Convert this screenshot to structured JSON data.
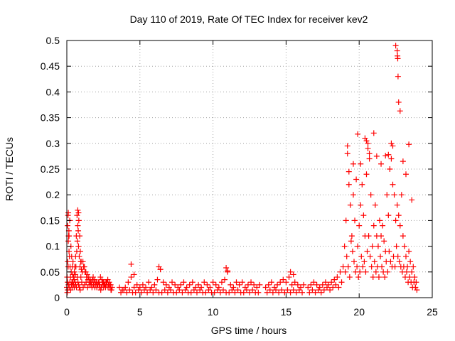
{
  "chart_data": {
    "type": "scatter",
    "title": "Day 110 of 2019, Rate Of TEC Index for receiver kev2",
    "xlabel": "GPS time / hours",
    "ylabel": "ROTI / TECUs",
    "xlim": [
      0,
      25
    ],
    "ylim": [
      0,
      0.5
    ],
    "xticks": [
      0,
      5,
      10,
      15,
      20,
      25
    ],
    "xtick_labels": [
      "0",
      "5",
      "10",
      "15",
      "20",
      "25"
    ],
    "yticks": [
      0,
      0.05,
      0.1,
      0.15,
      0.2,
      0.25,
      0.3,
      0.35,
      0.4,
      0.45,
      0.5
    ],
    "ytick_labels": [
      "0",
      "0.05",
      "0.1",
      "0.15",
      "0.2",
      "0.25",
      "0.3",
      "0.35",
      "0.4",
      "0.45",
      "0.5"
    ],
    "grid": true,
    "marker": "+",
    "color": "#ff0000",
    "series": [
      {
        "name": "ROTI",
        "x": [
          0.0,
          0.05,
          0.08,
          0.12,
          0.15,
          0.18,
          0.22,
          0.25,
          0.3,
          0.35,
          0.4,
          0.45,
          0.5,
          0.55,
          0.6,
          0.65,
          0.7,
          0.75,
          0.8,
          0.85,
          0.9,
          0.95,
          1.0,
          1.1,
          1.2,
          1.3,
          1.4,
          1.5,
          1.6,
          1.7,
          1.8,
          1.9,
          2.0,
          2.1,
          2.2,
          2.3,
          2.4,
          2.5,
          2.6,
          2.7,
          2.8,
          2.9,
          3.0,
          3.1,
          3.6,
          3.8,
          4.0,
          4.2,
          4.4,
          4.6,
          4.8,
          5.0,
          5.2,
          5.4,
          5.6,
          5.8,
          6.0,
          6.2,
          6.4,
          6.6,
          6.8,
          7.0,
          7.2,
          7.4,
          7.6,
          7.8,
          8.0,
          8.2,
          8.4,
          8.6,
          8.8,
          9.0,
          9.2,
          9.4,
          9.6,
          9.8,
          10.0,
          10.2,
          10.4,
          10.6,
          10.8,
          11.0,
          11.2,
          11.4,
          11.6,
          11.8,
          12.0,
          12.2,
          12.4,
          12.6,
          12.8,
          13.0,
          13.2,
          13.6,
          13.8,
          14.0,
          14.2,
          14.4,
          14.6,
          14.8,
          15.0,
          15.2,
          15.4,
          15.6,
          15.8,
          16.0,
          16.2,
          16.5,
          16.7,
          16.9,
          17.1,
          17.3,
          17.5,
          17.7,
          17.9,
          18.1,
          18.3,
          18.5,
          18.7,
          18.9,
          19.0,
          19.1,
          19.2,
          19.3,
          19.4,
          19.5,
          19.6,
          19.7,
          19.8,
          19.9,
          20.0,
          20.1,
          20.2,
          20.3,
          20.4,
          20.5,
          20.6,
          20.7,
          20.8,
          20.9,
          21.0,
          21.1,
          21.2,
          21.3,
          21.4,
          21.5,
          21.6,
          21.7,
          21.8,
          21.9,
          22.0,
          22.1,
          22.2,
          22.3,
          22.4,
          22.5,
          22.6,
          22.7,
          22.8,
          22.9,
          23.0,
          23.1,
          23.2,
          23.3,
          23.4,
          23.5,
          23.6,
          23.7,
          23.8,
          23.9,
          0.03,
          0.06,
          0.1,
          0.14,
          0.2,
          0.28,
          0.33,
          0.38,
          0.42,
          0.48,
          0.52,
          0.58,
          0.62,
          0.68,
          0.72,
          0.78,
          0.82,
          0.88,
          0.92,
          0.98,
          1.05,
          1.15,
          1.25,
          1.35,
          1.45,
          1.55,
          1.65,
          1.75,
          1.85,
          1.95,
          2.05,
          2.15,
          2.25,
          2.35,
          2.45,
          2.55,
          2.65,
          2.75,
          2.85,
          2.95,
          3.05,
          0.02,
          0.05,
          0.09,
          0.11,
          0.16,
          0.21,
          0.26,
          0.31,
          0.36,
          0.41,
          0.46,
          0.51,
          0.56,
          0.61,
          0.66,
          0.71,
          0.76,
          0.81,
          0.86,
          0.91,
          0.96,
          1.02,
          1.12,
          1.22,
          1.32,
          1.42,
          1.52,
          1.62,
          1.72,
          1.82,
          1.92,
          2.02,
          2.12,
          2.22,
          2.32,
          2.42,
          2.52,
          2.62,
          2.72,
          2.82,
          2.92,
          3.02,
          3.7,
          3.9,
          4.1,
          4.3,
          4.5,
          4.7,
          4.9,
          5.1,
          5.3,
          5.5,
          5.7,
          5.9,
          6.1,
          6.3,
          6.5,
          6.7,
          6.9,
          7.1,
          7.3,
          7.5,
          7.7,
          7.9,
          8.1,
          8.3,
          8.5,
          8.7,
          8.9,
          9.1,
          9.3,
          9.5,
          9.7,
          9.9,
          10.1,
          10.3,
          10.5,
          10.7,
          10.9,
          11.1,
          11.3,
          11.5,
          11.7,
          11.9,
          12.1,
          12.3,
          12.5,
          12.7,
          12.9,
          13.1,
          13.7,
          13.9,
          14.1,
          14.3,
          14.5,
          14.7,
          14.9,
          15.1,
          15.3,
          15.5,
          15.7,
          15.9,
          16.1,
          16.6,
          16.8,
          17.0,
          17.2,
          17.4,
          17.6,
          17.8,
          18.0,
          18.2,
          18.4,
          18.6,
          18.8,
          19.05,
          19.15,
          19.25,
          19.35,
          19.45,
          19.55,
          19.65,
          19.75,
          19.85,
          19.95,
          20.05,
          20.15,
          20.25,
          20.35,
          20.45,
          20.55,
          20.65,
          20.75,
          20.85,
          20.95,
          21.05,
          21.15,
          21.25,
          21.35,
          21.45,
          21.55,
          21.65,
          21.75,
          21.85,
          21.95,
          22.05,
          22.15,
          22.25,
          22.35,
          22.45,
          22.55,
          22.65,
          22.75,
          22.85,
          22.95,
          23.05,
          23.15,
          23.25,
          23.35,
          23.45,
          23.55,
          23.65,
          23.75,
          23.85,
          23.95,
          19.2,
          19.3,
          19.6,
          19.9,
          20.1,
          20.4,
          20.5,
          20.6,
          20.7,
          21.0,
          21.2,
          21.5,
          21.8,
          22.0,
          22.2,
          22.3,
          22.5,
          22.6,
          22.62,
          22.64,
          22.66,
          22.7,
          22.8,
          23.0,
          23.2,
          23.4,
          23.6,
          4.4,
          4.6,
          6.3,
          6.4,
          10.9,
          11.0,
          15.3,
          15.5,
          0.05,
          0.1,
          0.15,
          0.75,
          0.8
        ],
        "y": [
          0.02,
          0.14,
          0.16,
          0.12,
          0.09,
          0.08,
          0.06,
          0.04,
          0.05,
          0.03,
          0.045,
          0.04,
          0.035,
          0.06,
          0.08,
          0.12,
          0.16,
          0.14,
          0.1,
          0.08,
          0.06,
          0.07,
          0.055,
          0.07,
          0.06,
          0.05,
          0.045,
          0.04,
          0.035,
          0.03,
          0.04,
          0.035,
          0.03,
          0.025,
          0.03,
          0.04,
          0.035,
          0.03,
          0.025,
          0.03,
          0.035,
          0.03,
          0.025,
          0.02,
          0.02,
          0.015,
          0.02,
          0.03,
          0.04,
          0.02,
          0.025,
          0.02,
          0.025,
          0.02,
          0.03,
          0.02,
          0.025,
          0.035,
          0.055,
          0.03,
          0.025,
          0.02,
          0.03,
          0.025,
          0.02,
          0.025,
          0.03,
          0.02,
          0.025,
          0.03,
          0.02,
          0.025,
          0.02,
          0.03,
          0.025,
          0.02,
          0.03,
          0.025,
          0.02,
          0.03,
          0.035,
          0.05,
          0.025,
          0.02,
          0.03,
          0.025,
          0.03,
          0.02,
          0.025,
          0.03,
          0.025,
          0.02,
          0.025,
          0.02,
          0.025,
          0.03,
          0.02,
          0.025,
          0.03,
          0.035,
          0.03,
          0.04,
          0.025,
          0.03,
          0.025,
          0.02,
          0.025,
          0.02,
          0.025,
          0.03,
          0.025,
          0.02,
          0.025,
          0.03,
          0.025,
          0.03,
          0.035,
          0.04,
          0.05,
          0.06,
          0.1,
          0.15,
          0.28,
          0.22,
          0.18,
          0.12,
          0.2,
          0.15,
          0.23,
          0.1,
          0.14,
          0.18,
          0.22,
          0.16,
          0.12,
          0.24,
          0.3,
          0.27,
          0.2,
          0.1,
          0.14,
          0.18,
          0.12,
          0.1,
          0.15,
          0.12,
          0.14,
          0.11,
          0.09,
          0.2,
          0.16,
          0.25,
          0.27,
          0.22,
          0.2,
          0.15,
          0.18,
          0.16,
          0.14,
          0.2,
          0.12,
          0.1,
          0.08,
          0.06,
          0.09,
          0.07,
          0.05,
          0.06,
          0.04,
          0.03,
          0.01,
          0.07,
          0.11,
          0.13,
          0.15,
          0.1,
          0.08,
          0.06,
          0.07,
          0.04,
          0.05,
          0.045,
          0.06,
          0.09,
          0.11,
          0.13,
          0.15,
          0.12,
          0.09,
          0.07,
          0.05,
          0.06,
          0.05,
          0.04,
          0.035,
          0.03,
          0.025,
          0.035,
          0.03,
          0.025,
          0.02,
          0.03,
          0.025,
          0.02,
          0.03,
          0.025,
          0.02,
          0.03,
          0.025,
          0.02,
          0.015,
          0.04,
          0.03,
          0.06,
          0.025,
          0.02,
          0.03,
          0.015,
          0.025,
          0.02,
          0.03,
          0.025,
          0.02,
          0.03,
          0.025,
          0.02,
          0.04,
          0.03,
          0.025,
          0.02,
          0.015,
          0.04,
          0.03,
          0.02,
          0.025,
          0.03,
          0.02,
          0.025,
          0.03,
          0.02,
          0.025,
          0.02,
          0.03,
          0.025,
          0.02,
          0.015,
          0.025,
          0.02,
          0.03,
          0.025,
          0.02,
          0.025,
          0.015,
          0.01,
          0.015,
          0.01,
          0.015,
          0.01,
          0.01,
          0.015,
          0.01,
          0.015,
          0.01,
          0.015,
          0.01,
          0.015,
          0.01,
          0.01,
          0.015,
          0.01,
          0.015,
          0.01,
          0.01,
          0.015,
          0.01,
          0.015,
          0.01,
          0.01,
          0.015,
          0.01,
          0.015,
          0.01,
          0.01,
          0.015,
          0.01,
          0.01,
          0.015,
          0.01,
          0.015,
          0.01,
          0.01,
          0.015,
          0.01,
          0.015,
          0.01,
          0.01,
          0.015,
          0.01,
          0.015,
          0.01,
          0.01,
          0.01,
          0.015,
          0.01,
          0.015,
          0.01,
          0.015,
          0.01,
          0.015,
          0.01,
          0.015,
          0.01,
          0.015,
          0.01,
          0.01,
          0.015,
          0.01,
          0.015,
          0.01,
          0.015,
          0.02,
          0.015,
          0.02,
          0.025,
          0.02,
          0.03,
          0.05,
          0.08,
          0.06,
          0.04,
          0.11,
          0.09,
          0.07,
          0.05,
          0.06,
          0.04,
          0.05,
          0.08,
          0.06,
          0.07,
          0.05,
          0.09,
          0.12,
          0.08,
          0.06,
          0.04,
          0.07,
          0.05,
          0.06,
          0.04,
          0.08,
          0.06,
          0.05,
          0.04,
          0.07,
          0.05,
          0.09,
          0.07,
          0.06,
          0.08,
          0.06,
          0.1,
          0.08,
          0.07,
          0.06,
          0.05,
          0.06,
          0.04,
          0.05,
          0.03,
          0.04,
          0.03,
          0.02,
          0.03,
          0.02,
          0.015,
          0.295,
          0.245,
          0.26,
          0.318,
          0.26,
          0.31,
          0.305,
          0.29,
          0.28,
          0.32,
          0.275,
          0.26,
          0.276,
          0.278,
          0.3,
          0.295,
          0.49,
          0.48,
          0.47,
          0.465,
          0.43,
          0.38,
          0.363,
          0.265,
          0.24,
          0.298,
          0.19,
          0.065,
          0.045,
          0.06,
          0.055,
          0.058,
          0.052,
          0.05,
          0.045,
          0.015,
          0.165,
          0.12,
          0.17,
          0.165
        ]
      }
    ]
  }
}
